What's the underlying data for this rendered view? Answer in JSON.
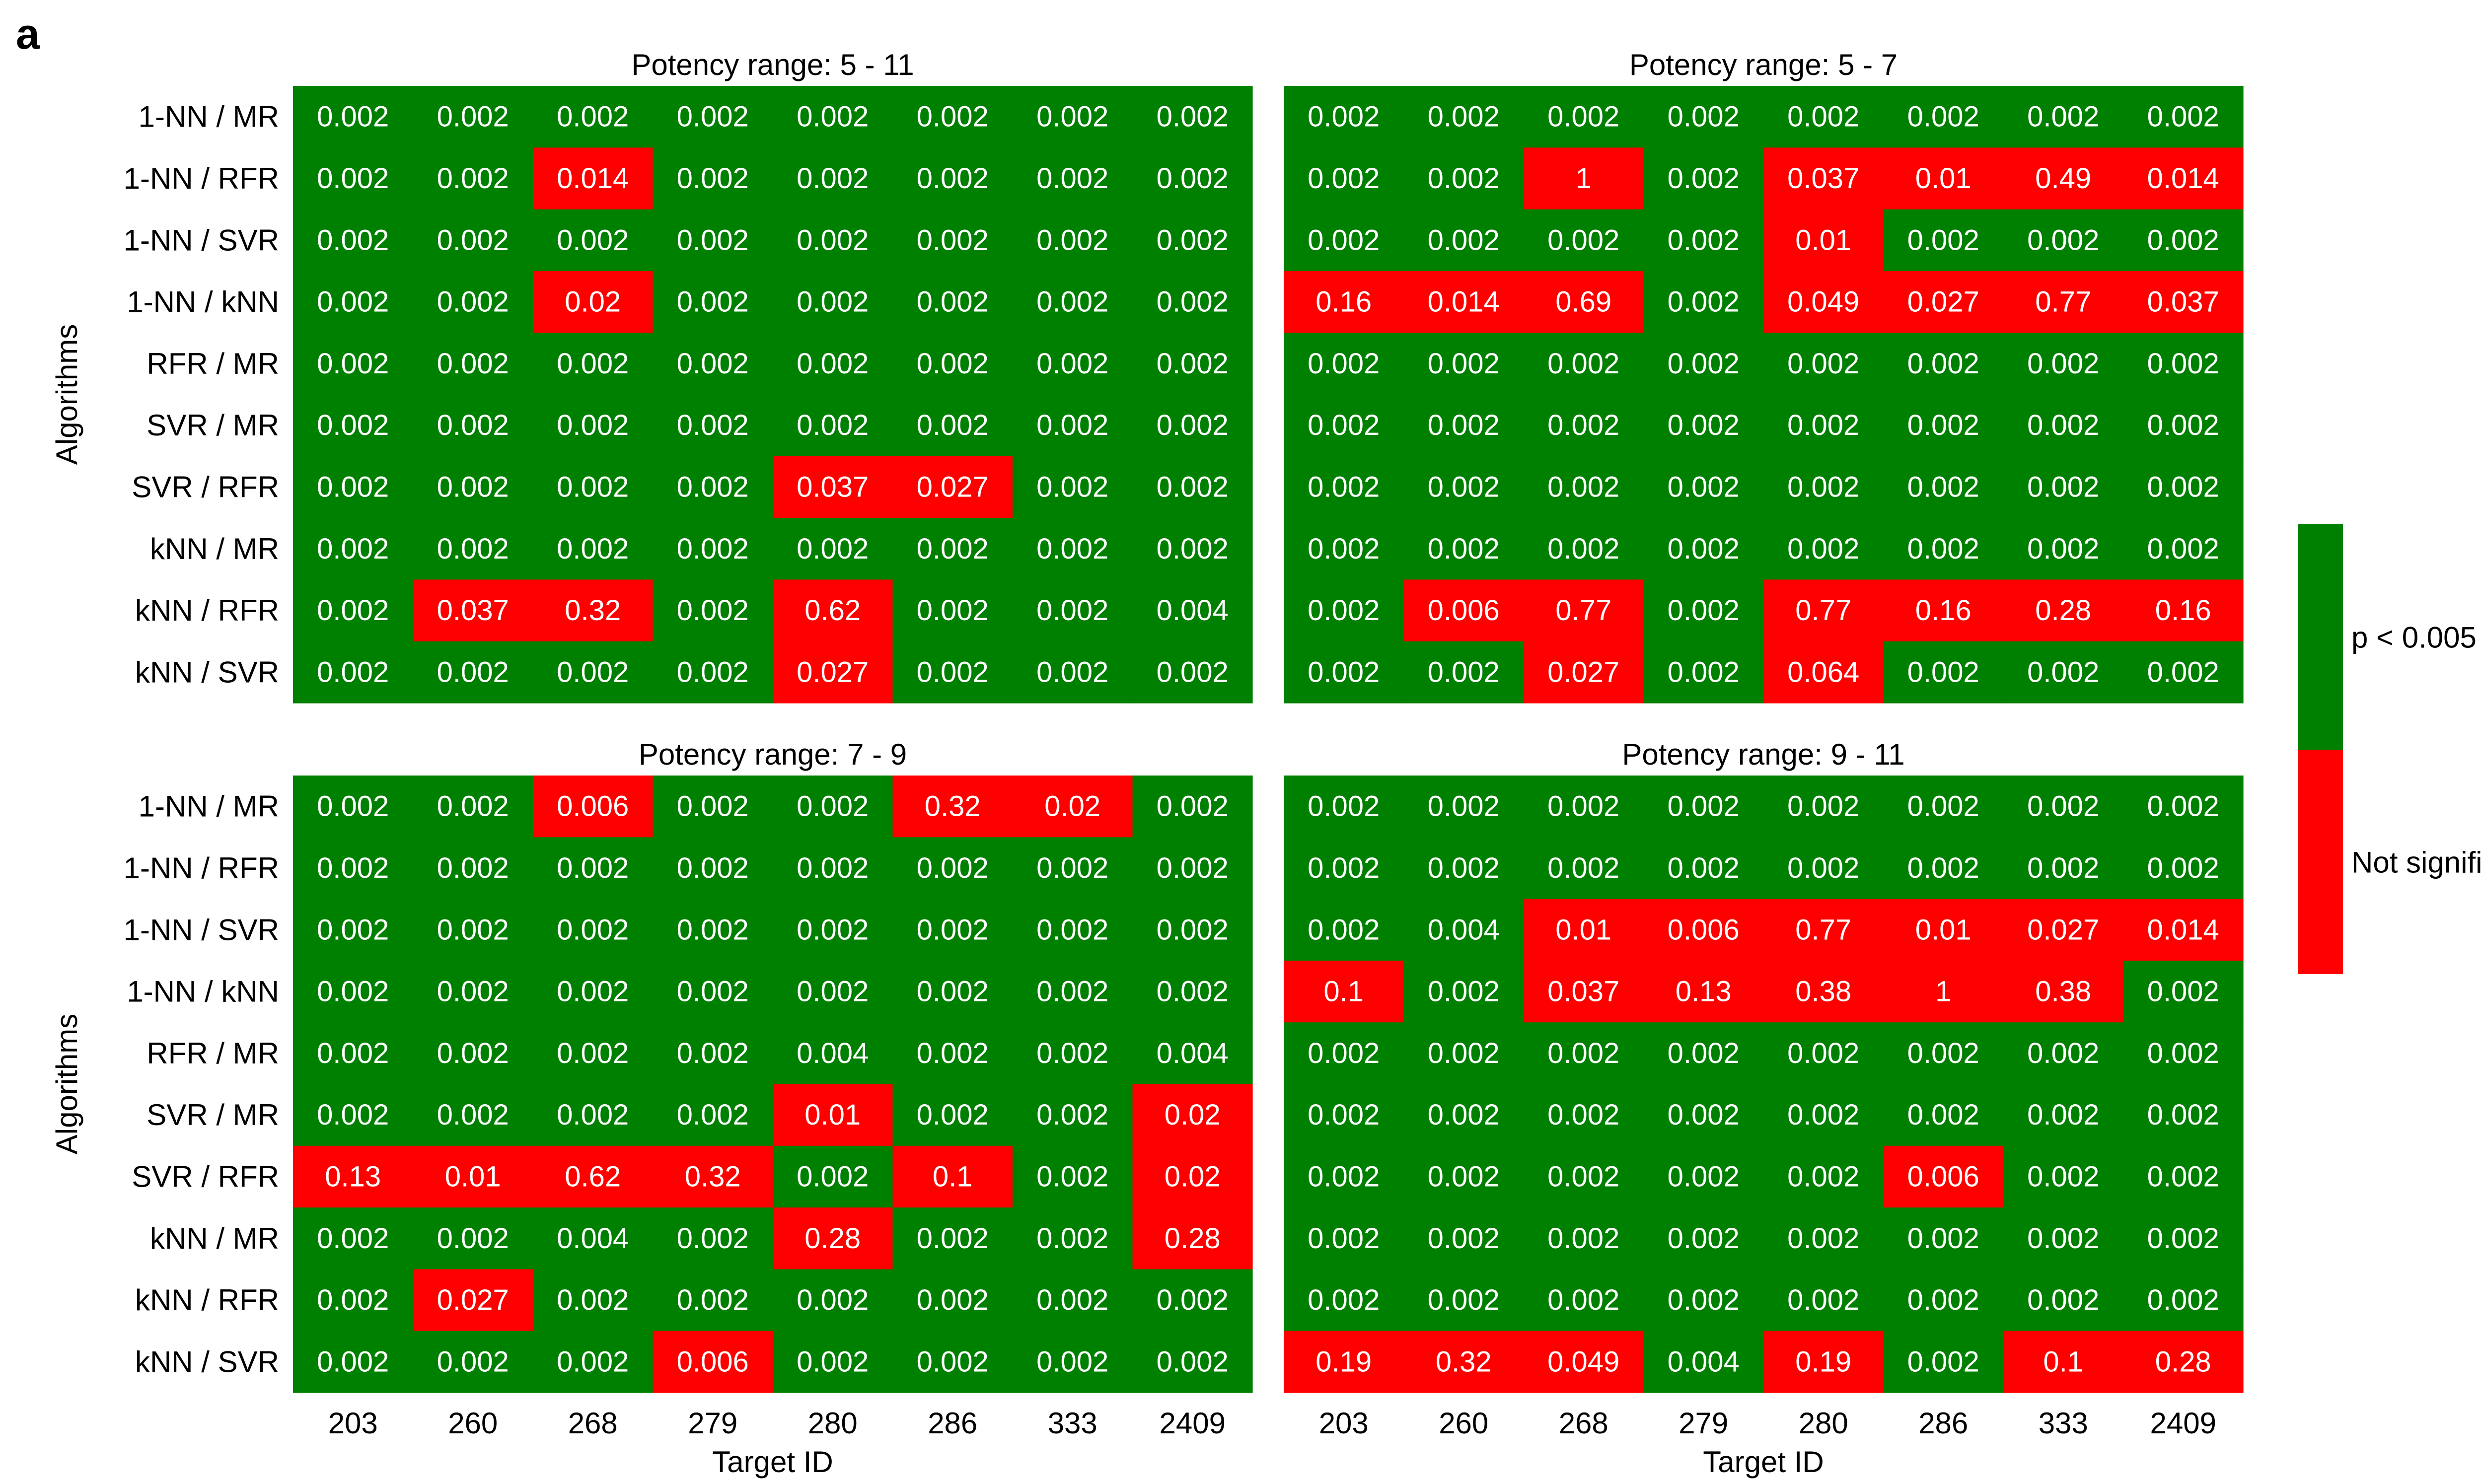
{
  "panel_label": "a",
  "colors": {
    "significant": "#008000",
    "not_significant": "#ff0000",
    "cell_text": "#ffffff",
    "label_text": "#000000"
  },
  "legend": {
    "significant_label": "p < 0.005",
    "not_significant_label": "Not significant"
  },
  "chart_data": [
    {
      "type": "heatmap",
      "title": "Potency range: 5 - 11",
      "ylabel": "Algorithms",
      "xlabel": "",
      "x_categories": [
        "203",
        "260",
        "268",
        "279",
        "280",
        "286",
        "333",
        "2409"
      ],
      "y_categories": [
        "1-NN / MR",
        "1-NN / RFR",
        "1-NN / SVR",
        "1-NN / kNN",
        "RFR / MR",
        "SVR / MR",
        "SVR / RFR",
        "kNN / MR",
        "kNN / RFR",
        "kNN / SVR"
      ],
      "values": [
        [
          "0.002",
          "0.002",
          "0.002",
          "0.002",
          "0.002",
          "0.002",
          "0.002",
          "0.002"
        ],
        [
          "0.002",
          "0.002",
          "0.014",
          "0.002",
          "0.002",
          "0.002",
          "0.002",
          "0.002"
        ],
        [
          "0.002",
          "0.002",
          "0.002",
          "0.002",
          "0.002",
          "0.002",
          "0.002",
          "0.002"
        ],
        [
          "0.002",
          "0.002",
          "0.02",
          "0.002",
          "0.002",
          "0.002",
          "0.002",
          "0.002"
        ],
        [
          "0.002",
          "0.002",
          "0.002",
          "0.002",
          "0.002",
          "0.002",
          "0.002",
          "0.002"
        ],
        [
          "0.002",
          "0.002",
          "0.002",
          "0.002",
          "0.002",
          "0.002",
          "0.002",
          "0.002"
        ],
        [
          "0.002",
          "0.002",
          "0.002",
          "0.002",
          "0.037",
          "0.027",
          "0.002",
          "0.002"
        ],
        [
          "0.002",
          "0.002",
          "0.002",
          "0.002",
          "0.002",
          "0.002",
          "0.002",
          "0.002"
        ],
        [
          "0.002",
          "0.037",
          "0.32",
          "0.002",
          "0.62",
          "0.002",
          "0.002",
          "0.004"
        ],
        [
          "0.002",
          "0.002",
          "0.002",
          "0.002",
          "0.027",
          "0.002",
          "0.002",
          "0.002"
        ]
      ],
      "not_significant": [
        [
          0,
          0,
          0,
          0,
          0,
          0,
          0,
          0
        ],
        [
          0,
          0,
          1,
          0,
          0,
          0,
          0,
          0
        ],
        [
          0,
          0,
          0,
          0,
          0,
          0,
          0,
          0
        ],
        [
          0,
          0,
          1,
          0,
          0,
          0,
          0,
          0
        ],
        [
          0,
          0,
          0,
          0,
          0,
          0,
          0,
          0
        ],
        [
          0,
          0,
          0,
          0,
          0,
          0,
          0,
          0
        ],
        [
          0,
          0,
          0,
          0,
          1,
          1,
          0,
          0
        ],
        [
          0,
          0,
          0,
          0,
          0,
          0,
          0,
          0
        ],
        [
          0,
          1,
          1,
          0,
          1,
          0,
          0,
          0
        ],
        [
          0,
          0,
          0,
          0,
          1,
          0,
          0,
          0
        ]
      ]
    },
    {
      "type": "heatmap",
      "title": "Potency range: 5 - 7",
      "ylabel": "",
      "xlabel": "",
      "x_categories": [
        "203",
        "260",
        "268",
        "279",
        "280",
        "286",
        "333",
        "2409"
      ],
      "y_categories": [
        "1-NN / MR",
        "1-NN / RFR",
        "1-NN / SVR",
        "1-NN / kNN",
        "RFR / MR",
        "SVR / MR",
        "SVR / RFR",
        "kNN / MR",
        "kNN / RFR",
        "kNN / SVR"
      ],
      "values": [
        [
          "0.002",
          "0.002",
          "0.002",
          "0.002",
          "0.002",
          "0.002",
          "0.002",
          "0.002"
        ],
        [
          "0.002",
          "0.002",
          "1",
          "0.002",
          "0.037",
          "0.01",
          "0.49",
          "0.014"
        ],
        [
          "0.002",
          "0.002",
          "0.002",
          "0.002",
          "0.01",
          "0.002",
          "0.002",
          "0.002"
        ],
        [
          "0.16",
          "0.014",
          "0.69",
          "0.002",
          "0.049",
          "0.027",
          "0.77",
          "0.037"
        ],
        [
          "0.002",
          "0.002",
          "0.002",
          "0.002",
          "0.002",
          "0.002",
          "0.002",
          "0.002"
        ],
        [
          "0.002",
          "0.002",
          "0.002",
          "0.002",
          "0.002",
          "0.002",
          "0.002",
          "0.002"
        ],
        [
          "0.002",
          "0.002",
          "0.002",
          "0.002",
          "0.002",
          "0.002",
          "0.002",
          "0.002"
        ],
        [
          "0.002",
          "0.002",
          "0.002",
          "0.002",
          "0.002",
          "0.002",
          "0.002",
          "0.002"
        ],
        [
          "0.002",
          "0.006",
          "0.77",
          "0.002",
          "0.77",
          "0.16",
          "0.28",
          "0.16"
        ],
        [
          "0.002",
          "0.002",
          "0.027",
          "0.002",
          "0.064",
          "0.002",
          "0.002",
          "0.002"
        ]
      ],
      "not_significant": [
        [
          0,
          0,
          0,
          0,
          0,
          0,
          0,
          0
        ],
        [
          0,
          0,
          1,
          0,
          1,
          1,
          1,
          1
        ],
        [
          0,
          0,
          0,
          0,
          1,
          0,
          0,
          0
        ],
        [
          1,
          1,
          1,
          0,
          1,
          1,
          1,
          1
        ],
        [
          0,
          0,
          0,
          0,
          0,
          0,
          0,
          0
        ],
        [
          0,
          0,
          0,
          0,
          0,
          0,
          0,
          0
        ],
        [
          0,
          0,
          0,
          0,
          0,
          0,
          0,
          0
        ],
        [
          0,
          0,
          0,
          0,
          0,
          0,
          0,
          0
        ],
        [
          0,
          1,
          1,
          0,
          1,
          1,
          1,
          1
        ],
        [
          0,
          0,
          1,
          0,
          1,
          0,
          0,
          0
        ]
      ]
    },
    {
      "type": "heatmap",
      "title": "Potency range: 7 - 9",
      "ylabel": "Algorithms",
      "xlabel": "Target ID",
      "x_categories": [
        "203",
        "260",
        "268",
        "279",
        "280",
        "286",
        "333",
        "2409"
      ],
      "y_categories": [
        "1-NN / MR",
        "1-NN / RFR",
        "1-NN / SVR",
        "1-NN / kNN",
        "RFR / MR",
        "SVR / MR",
        "SVR / RFR",
        "kNN / MR",
        "kNN / RFR",
        "kNN / SVR"
      ],
      "values": [
        [
          "0.002",
          "0.002",
          "0.006",
          "0.002",
          "0.002",
          "0.32",
          "0.02",
          "0.002"
        ],
        [
          "0.002",
          "0.002",
          "0.002",
          "0.002",
          "0.002",
          "0.002",
          "0.002",
          "0.002"
        ],
        [
          "0.002",
          "0.002",
          "0.002",
          "0.002",
          "0.002",
          "0.002",
          "0.002",
          "0.002"
        ],
        [
          "0.002",
          "0.002",
          "0.002",
          "0.002",
          "0.002",
          "0.002",
          "0.002",
          "0.002"
        ],
        [
          "0.002",
          "0.002",
          "0.002",
          "0.002",
          "0.004",
          "0.002",
          "0.002",
          "0.004"
        ],
        [
          "0.002",
          "0.002",
          "0.002",
          "0.002",
          "0.01",
          "0.002",
          "0.002",
          "0.02"
        ],
        [
          "0.13",
          "0.01",
          "0.62",
          "0.32",
          "0.002",
          "0.1",
          "0.002",
          "0.02"
        ],
        [
          "0.002",
          "0.002",
          "0.004",
          "0.002",
          "0.28",
          "0.002",
          "0.002",
          "0.28"
        ],
        [
          "0.002",
          "0.027",
          "0.002",
          "0.002",
          "0.002",
          "0.002",
          "0.002",
          "0.002"
        ],
        [
          "0.002",
          "0.002",
          "0.002",
          "0.006",
          "0.002",
          "0.002",
          "0.002",
          "0.002"
        ]
      ],
      "not_significant": [
        [
          0,
          0,
          1,
          0,
          0,
          1,
          1,
          0
        ],
        [
          0,
          0,
          0,
          0,
          0,
          0,
          0,
          0
        ],
        [
          0,
          0,
          0,
          0,
          0,
          0,
          0,
          0
        ],
        [
          0,
          0,
          0,
          0,
          0,
          0,
          0,
          0
        ],
        [
          0,
          0,
          0,
          0,
          0,
          0,
          0,
          0
        ],
        [
          0,
          0,
          0,
          0,
          1,
          0,
          0,
          1
        ],
        [
          1,
          1,
          1,
          1,
          0,
          1,
          0,
          1
        ],
        [
          0,
          0,
          0,
          0,
          1,
          0,
          0,
          1
        ],
        [
          0,
          1,
          0,
          0,
          0,
          0,
          0,
          0
        ],
        [
          0,
          0,
          0,
          1,
          0,
          0,
          0,
          0
        ]
      ]
    },
    {
      "type": "heatmap",
      "title": "Potency range: 9 - 11",
      "ylabel": "",
      "xlabel": "Target ID",
      "x_categories": [
        "203",
        "260",
        "268",
        "279",
        "280",
        "286",
        "333",
        "2409"
      ],
      "y_categories": [
        "1-NN / MR",
        "1-NN / RFR",
        "1-NN / SVR",
        "1-NN / kNN",
        "RFR / MR",
        "SVR / MR",
        "SVR / RFR",
        "kNN / MR",
        "kNN / RFR",
        "kNN / SVR"
      ],
      "values": [
        [
          "0.002",
          "0.002",
          "0.002",
          "0.002",
          "0.002",
          "0.002",
          "0.002",
          "0.002"
        ],
        [
          "0.002",
          "0.002",
          "0.002",
          "0.002",
          "0.002",
          "0.002",
          "0.002",
          "0.002"
        ],
        [
          "0.002",
          "0.004",
          "0.01",
          "0.006",
          "0.77",
          "0.01",
          "0.027",
          "0.014"
        ],
        [
          "0.1",
          "0.002",
          "0.037",
          "0.13",
          "0.38",
          "1",
          "0.38",
          "0.002"
        ],
        [
          "0.002",
          "0.002",
          "0.002",
          "0.002",
          "0.002",
          "0.002",
          "0.002",
          "0.002"
        ],
        [
          "0.002",
          "0.002",
          "0.002",
          "0.002",
          "0.002",
          "0.002",
          "0.002",
          "0.002"
        ],
        [
          "0.002",
          "0.002",
          "0.002",
          "0.002",
          "0.002",
          "0.006",
          "0.002",
          "0.002"
        ],
        [
          "0.002",
          "0.002",
          "0.002",
          "0.002",
          "0.002",
          "0.002",
          "0.002",
          "0.002"
        ],
        [
          "0.002",
          "0.002",
          "0.002",
          "0.002",
          "0.002",
          "0.002",
          "0.002",
          "0.002"
        ],
        [
          "0.19",
          "0.32",
          "0.049",
          "0.004",
          "0.19",
          "0.002",
          "0.1",
          "0.28"
        ]
      ],
      "not_significant": [
        [
          0,
          0,
          0,
          0,
          0,
          0,
          0,
          0
        ],
        [
          0,
          0,
          0,
          0,
          0,
          0,
          0,
          0
        ],
        [
          0,
          0,
          1,
          1,
          1,
          1,
          1,
          1
        ],
        [
          1,
          0,
          1,
          1,
          1,
          1,
          1,
          0
        ],
        [
          0,
          0,
          0,
          0,
          0,
          0,
          0,
          0
        ],
        [
          0,
          0,
          0,
          0,
          0,
          0,
          0,
          0
        ],
        [
          0,
          0,
          0,
          0,
          0,
          1,
          0,
          0
        ],
        [
          0,
          0,
          0,
          0,
          0,
          0,
          0,
          0
        ],
        [
          0,
          0,
          0,
          0,
          0,
          0,
          0,
          0
        ],
        [
          1,
          1,
          1,
          0,
          1,
          0,
          1,
          1
        ]
      ]
    }
  ]
}
